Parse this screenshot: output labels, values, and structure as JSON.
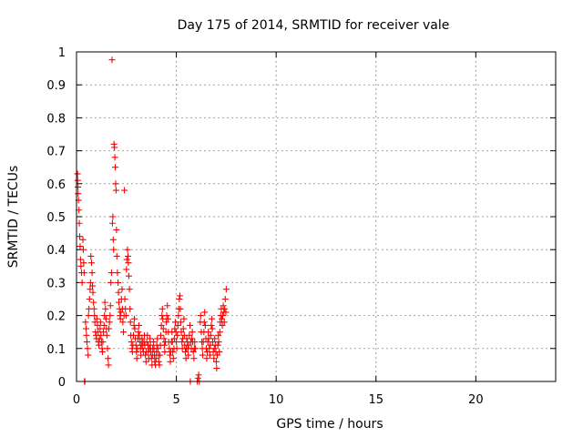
{
  "chart_data": {
    "type": "scatter",
    "title": "Day 175 of 2014, SRMTID for receiver vale",
    "xlabel": "GPS time / hours",
    "ylabel": "SRMTID / TECUs",
    "xlim": [
      0,
      24
    ],
    "ylim": [
      0,
      1
    ],
    "xticks": [
      0,
      5,
      10,
      15,
      20
    ],
    "yticks": [
      0,
      0.1,
      0.2,
      0.3,
      0.4,
      0.5,
      0.6,
      0.7,
      0.8,
      0.9,
      1
    ],
    "grid": true,
    "marker": "+",
    "color": "#ff0000",
    "series": [
      {
        "name": "SRMTID",
        "points": [
          [
            0.05,
            0.63
          ],
          [
            0.06,
            0.61
          ],
          [
            0.07,
            0.59
          ],
          [
            0.08,
            0.57
          ],
          [
            0.1,
            0.55
          ],
          [
            0.12,
            0.52
          ],
          [
            0.14,
            0.48
          ],
          [
            0.16,
            0.44
          ],
          [
            0.18,
            0.41
          ],
          [
            0.2,
            0.37
          ],
          [
            0.22,
            0.35
          ],
          [
            0.25,
            0.33
          ],
          [
            0.28,
            0.3
          ],
          [
            0.32,
            0.43
          ],
          [
            0.34,
            0.4
          ],
          [
            0.36,
            0.36
          ],
          [
            0.38,
            0.33
          ],
          [
            0.4,
            0.0
          ],
          [
            0.42,
            0.0
          ],
          [
            0.45,
            0.18
          ],
          [
            0.48,
            0.16
          ],
          [
            0.5,
            0.14
          ],
          [
            0.52,
            0.12
          ],
          [
            0.55,
            0.1
          ],
          [
            0.58,
            0.08
          ],
          [
            0.6,
            0.2
          ],
          [
            0.62,
            0.22
          ],
          [
            0.65,
            0.25
          ],
          [
            0.68,
            0.28
          ],
          [
            0.7,
            0.3
          ],
          [
            0.72,
            0.38
          ],
          [
            0.75,
            0.36
          ],
          [
            0.78,
            0.33
          ],
          [
            0.8,
            0.29
          ],
          [
            0.82,
            0.27
          ],
          [
            0.85,
            0.24
          ],
          [
            0.88,
            0.22
          ],
          [
            0.9,
            0.2
          ],
          [
            0.92,
            0.18
          ],
          [
            0.95,
            0.15
          ],
          [
            0.98,
            0.14
          ],
          [
            1.0,
            0.13
          ],
          [
            1.02,
            0.19
          ],
          [
            1.05,
            0.17
          ],
          [
            1.08,
            0.15
          ],
          [
            1.1,
            0.12
          ],
          [
            1.12,
            0.11
          ],
          [
            1.15,
            0.13
          ],
          [
            1.18,
            0.16
          ],
          [
            1.2,
            0.18
          ],
          [
            1.22,
            0.14
          ],
          [
            1.25,
            0.12
          ],
          [
            1.28,
            0.1
          ],
          [
            1.3,
            0.09
          ],
          [
            1.32,
            0.12
          ],
          [
            1.35,
            0.15
          ],
          [
            1.38,
            0.17
          ],
          [
            1.4,
            0.2
          ],
          [
            1.42,
            0.24
          ],
          [
            1.45,
            0.22
          ],
          [
            1.48,
            0.19
          ],
          [
            1.5,
            0.16
          ],
          [
            1.52,
            0.14
          ],
          [
            1.55,
            0.1
          ],
          [
            1.58,
            0.07
          ],
          [
            1.6,
            0.05
          ],
          [
            1.62,
            0.16
          ],
          [
            1.65,
            0.18
          ],
          [
            1.68,
            0.2
          ],
          [
            1.7,
            0.23
          ],
          [
            1.72,
            0.3
          ],
          [
            1.75,
            0.33
          ],
          [
            1.78,
            0.976
          ],
          [
            1.8,
            0.48
          ],
          [
            1.82,
            0.5
          ],
          [
            1.84,
            0.43
          ],
          [
            1.86,
            0.4
          ],
          [
            1.88,
            0.72
          ],
          [
            1.9,
            0.71
          ],
          [
            1.92,
            0.68
          ],
          [
            1.94,
            0.65
          ],
          [
            1.96,
            0.6
          ],
          [
            1.98,
            0.58
          ],
          [
            2.0,
            0.46
          ],
          [
            2.02,
            0.38
          ],
          [
            2.05,
            0.33
          ],
          [
            2.08,
            0.3
          ],
          [
            2.1,
            0.27
          ],
          [
            2.12,
            0.24
          ],
          [
            2.15,
            0.22
          ],
          [
            2.18,
            0.2
          ],
          [
            2.2,
            0.19
          ],
          [
            2.22,
            0.21
          ],
          [
            2.25,
            0.25
          ],
          [
            2.28,
            0.28
          ],
          [
            2.3,
            0.22
          ],
          [
            2.32,
            0.18
          ],
          [
            2.35,
            0.15
          ],
          [
            2.38,
            0.2
          ],
          [
            2.4,
            0.58
          ],
          [
            2.42,
            0.25
          ],
          [
            2.45,
            0.22
          ],
          [
            2.48,
            0.2
          ],
          [
            2.5,
            0.34
          ],
          [
            2.52,
            0.37
          ],
          [
            2.55,
            0.4
          ],
          [
            2.58,
            0.38
          ],
          [
            2.6,
            0.36
          ],
          [
            2.62,
            0.32
          ],
          [
            2.65,
            0.28
          ],
          [
            2.68,
            0.22
          ],
          [
            2.7,
            0.18
          ],
          [
            2.72,
            0.14
          ],
          [
            2.75,
            0.12
          ],
          [
            2.78,
            0.1
          ],
          [
            2.8,
            0.09
          ],
          [
            2.82,
            0.11
          ],
          [
            2.85,
            0.14
          ],
          [
            2.88,
            0.17
          ],
          [
            2.9,
            0.19
          ],
          [
            2.92,
            0.16
          ],
          [
            2.95,
            0.13
          ],
          [
            2.98,
            0.11
          ],
          [
            3.0,
            0.09
          ],
          [
            3.02,
            0.07
          ],
          [
            3.05,
            0.1
          ],
          [
            3.08,
            0.13
          ],
          [
            3.1,
            0.15
          ],
          [
            3.12,
            0.17
          ],
          [
            3.15,
            0.14
          ],
          [
            3.18,
            0.12
          ],
          [
            3.2,
            0.1
          ],
          [
            3.22,
            0.08
          ],
          [
            3.25,
            0.11
          ],
          [
            3.28,
            0.13
          ],
          [
            3.3,
            0.12
          ],
          [
            3.32,
            0.1
          ],
          [
            3.35,
            0.09
          ],
          [
            3.38,
            0.12
          ],
          [
            3.4,
            0.14
          ],
          [
            3.42,
            0.11
          ],
          [
            3.45,
            0.08
          ],
          [
            3.48,
            0.06
          ],
          [
            3.5,
            0.09
          ],
          [
            3.52,
            0.12
          ],
          [
            3.55,
            0.14
          ],
          [
            3.58,
            0.11
          ],
          [
            3.6,
            0.09
          ],
          [
            3.62,
            0.07
          ],
          [
            3.65,
            0.1
          ],
          [
            3.68,
            0.13
          ],
          [
            3.7,
            0.11
          ],
          [
            3.72,
            0.09
          ],
          [
            3.75,
            0.07
          ],
          [
            3.78,
            0.05
          ],
          [
            3.8,
            0.08
          ],
          [
            3.82,
            0.1
          ],
          [
            3.85,
            0.12
          ],
          [
            3.88,
            0.1
          ],
          [
            3.9,
            0.08
          ],
          [
            3.92,
            0.06
          ],
          [
            3.95,
            0.05
          ],
          [
            3.98,
            0.07
          ],
          [
            4.0,
            0.09
          ],
          [
            4.02,
            0.11
          ],
          [
            4.05,
            0.13
          ],
          [
            4.08,
            0.1
          ],
          [
            4.1,
            0.08
          ],
          [
            4.12,
            0.06
          ],
          [
            4.15,
            0.05
          ],
          [
            4.18,
            0.08
          ],
          [
            4.2,
            0.11
          ],
          [
            4.22,
            0.14
          ],
          [
            4.25,
            0.17
          ],
          [
            4.28,
            0.2
          ],
          [
            4.3,
            0.22
          ],
          [
            4.32,
            0.19
          ],
          [
            4.35,
            0.16
          ],
          [
            4.38,
            0.13
          ],
          [
            4.4,
            0.11
          ],
          [
            4.42,
            0.09
          ],
          [
            4.45,
            0.12
          ],
          [
            4.48,
            0.15
          ],
          [
            4.5,
            0.18
          ],
          [
            4.52,
            0.2
          ],
          [
            4.55,
            0.23
          ],
          [
            4.58,
            0.19
          ],
          [
            4.6,
            0.15
          ],
          [
            4.62,
            0.12
          ],
          [
            4.65,
            0.1
          ],
          [
            4.68,
            0.08
          ],
          [
            4.7,
            0.06
          ],
          [
            4.72,
            0.09
          ],
          [
            4.75,
            0.12
          ],
          [
            4.78,
            0.15
          ],
          [
            4.8,
            0.12
          ],
          [
            4.82,
            0.09
          ],
          [
            4.85,
            0.07
          ],
          [
            4.88,
            0.1
          ],
          [
            4.9,
            0.13
          ],
          [
            4.92,
            0.16
          ],
          [
            4.95,
            0.18
          ],
          [
            4.98,
            0.15
          ],
          [
            5.0,
            0.12
          ],
          [
            5.02,
            0.1
          ],
          [
            5.05,
            0.14
          ],
          [
            5.08,
            0.17
          ],
          [
            5.1,
            0.2
          ],
          [
            5.12,
            0.22
          ],
          [
            5.15,
            0.25
          ],
          [
            5.18,
            0.26
          ],
          [
            5.2,
            0.22
          ],
          [
            5.22,
            0.18
          ],
          [
            5.25,
            0.15
          ],
          [
            5.28,
            0.12
          ],
          [
            5.3,
            0.1
          ],
          [
            5.32,
            0.13
          ],
          [
            5.35,
            0.16
          ],
          [
            5.38,
            0.19
          ],
          [
            5.4,
            0.14
          ],
          [
            5.42,
            0.11
          ],
          [
            5.45,
            0.09
          ],
          [
            5.48,
            0.07
          ],
          [
            5.5,
            0.1
          ],
          [
            5.52,
            0.13
          ],
          [
            5.55,
            0.12
          ],
          [
            5.58,
            0.1
          ],
          [
            5.6,
            0.08
          ],
          [
            5.62,
            0.11
          ],
          [
            5.65,
            0.14
          ],
          [
            5.68,
            0.17
          ],
          [
            5.7,
            0.0
          ],
          [
            5.72,
            0.12
          ],
          [
            5.75,
            0.1
          ],
          [
            5.78,
            0.13
          ],
          [
            5.8,
            0.15
          ],
          [
            5.82,
            0.12
          ],
          [
            5.85,
            0.09
          ],
          [
            5.88,
            0.07
          ],
          [
            5.9,
            0.1
          ],
          [
            5.92,
            0.12
          ],
          [
            5.95,
            0.1
          ],
          [
            6.05,
            0.0
          ],
          [
            6.08,
            0.01
          ],
          [
            6.12,
            0.02
          ],
          [
            6.15,
            0.0
          ],
          [
            6.2,
            0.18
          ],
          [
            6.22,
            0.2
          ],
          [
            6.25,
            0.15
          ],
          [
            6.28,
            0.12
          ],
          [
            6.3,
            0.1
          ],
          [
            6.32,
            0.08
          ],
          [
            6.35,
            0.12
          ],
          [
            6.38,
            0.15
          ],
          [
            6.4,
            0.18
          ],
          [
            6.42,
            0.21
          ],
          [
            6.45,
            0.17
          ],
          [
            6.48,
            0.13
          ],
          [
            6.5,
            0.1
          ],
          [
            6.52,
            0.07
          ],
          [
            6.55,
            0.09
          ],
          [
            6.58,
            0.12
          ],
          [
            6.6,
            0.15
          ],
          [
            6.62,
            0.13
          ],
          [
            6.65,
            0.1
          ],
          [
            6.68,
            0.08
          ],
          [
            6.7,
            0.11
          ],
          [
            6.72,
            0.14
          ],
          [
            6.75,
            0.17
          ],
          [
            6.78,
            0.19
          ],
          [
            6.8,
            0.16
          ],
          [
            6.82,
            0.12
          ],
          [
            6.85,
            0.09
          ],
          [
            6.88,
            0.07
          ],
          [
            6.9,
            0.1
          ],
          [
            6.92,
            0.13
          ],
          [
            6.95,
            0.11
          ],
          [
            6.98,
            0.09
          ],
          [
            7.0,
            0.06
          ],
          [
            7.02,
            0.04
          ],
          [
            7.05,
            0.08
          ],
          [
            7.08,
            0.11
          ],
          [
            7.1,
            0.14
          ],
          [
            7.12,
            0.12
          ],
          [
            7.15,
            0.09
          ],
          [
            7.18,
            0.15
          ],
          [
            7.2,
            0.18
          ],
          [
            7.22,
            0.2
          ],
          [
            7.25,
            0.22
          ],
          [
            7.28,
            0.19
          ],
          [
            7.3,
            0.17
          ],
          [
            7.32,
            0.2
          ],
          [
            7.35,
            0.23
          ],
          [
            7.38,
            0.21
          ],
          [
            7.4,
            0.18
          ],
          [
            7.42,
            0.22
          ],
          [
            7.45,
            0.25
          ],
          [
            7.48,
            0.21
          ],
          [
            7.5,
            0.28
          ]
        ]
      }
    ]
  }
}
